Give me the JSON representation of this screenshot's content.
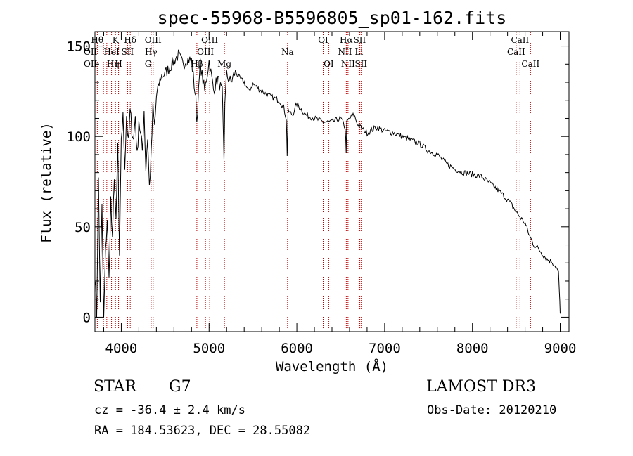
{
  "chart_data": {
    "type": "line",
    "title": "spec-55968-B5596805_sp01-162.fits",
    "xlabel": "Wavelength (Å)",
    "ylabel": "Flux (relative)",
    "xlim": [
      3700,
      9100
    ],
    "ylim": [
      -8,
      158
    ],
    "xticks": [
      4000,
      5000,
      6000,
      7000,
      8000,
      9000
    ],
    "yticks": [
      0,
      50,
      100,
      150
    ],
    "series": [
      {
        "name": "spectrum",
        "x": [
          3700,
          3720,
          3740,
          3760,
          3780,
          3800,
          3820,
          3840,
          3860,
          3880,
          3900,
          3920,
          3940,
          3960,
          3980,
          4000,
          4020,
          4040,
          4060,
          4080,
          4100,
          4120,
          4140,
          4160,
          4180,
          4200,
          4220,
          4240,
          4260,
          4280,
          4300,
          4320,
          4340,
          4360,
          4380,
          4400,
          4450,
          4500,
          4550,
          4600,
          4650,
          4700,
          4750,
          4800,
          4850,
          4860,
          4900,
          4950,
          5000,
          5050,
          5100,
          5150,
          5170,
          5180,
          5200,
          5250,
          5300,
          5350,
          5400,
          5450,
          5500,
          5600,
          5700,
          5800,
          5850,
          5880,
          5890,
          5900,
          5950,
          6000,
          6100,
          6200,
          6300,
          6400,
          6500,
          6550,
          6562,
          6570,
          6600,
          6650,
          6700,
          6750,
          6800,
          6900,
          7000,
          7100,
          7200,
          7300,
          7400,
          7500,
          7600,
          7700,
          7800,
          7900,
          8000,
          8100,
          8200,
          8300,
          8400,
          8450,
          8500,
          8550,
          8600,
          8650,
          8700,
          8750,
          8800,
          8850,
          8900,
          8950,
          8980,
          8990,
          9000
        ],
        "values": [
          25,
          2,
          75,
          10,
          60,
          -2,
          35,
          55,
          20,
          65,
          40,
          80,
          50,
          95,
          30,
          100,
          110,
          85,
          112,
          95,
          113,
          105,
          98,
          112,
          88,
          110,
          100,
          92,
          115,
          82,
          100,
          72,
          88,
          115,
          105,
          122,
          133,
          135,
          138,
          142,
          145,
          140,
          143,
          142,
          120,
          108,
          140,
          125,
          142,
          126,
          132,
          124,
          85,
          120,
          134,
          130,
          136,
          132,
          130,
          125,
          129,
          125,
          122,
          120,
          116,
          110,
          90,
          114,
          112,
          118,
          112,
          110,
          108,
          108,
          110,
          105,
          92,
          108,
          110,
          112,
          106,
          104,
          102,
          105,
          103,
          102,
          100,
          98,
          96,
          92,
          90,
          85,
          82,
          80,
          79,
          78,
          74,
          70,
          65,
          62,
          58,
          55,
          52,
          45,
          40,
          38,
          35,
          32,
          31,
          28,
          25,
          14,
          2
        ]
      }
    ],
    "lines": [
      {
        "label": "Hθ",
        "wl": 3797,
        "row": 0,
        "ha": "right"
      },
      {
        "label": "OII",
        "wl": 3727,
        "row": 1,
        "ha": "right"
      },
      {
        "label": "OII",
        "wl": 3727,
        "row": 2,
        "ha": "right"
      },
      {
        "label": "Hη",
        "wl": 3835,
        "row": 2,
        "ha": "left"
      },
      {
        "label": "HeI",
        "wl": 3889,
        "row": 1,
        "ha": "center"
      },
      {
        "label": "SII",
        "wl": 4072,
        "row": 1,
        "ha": "center"
      },
      {
        "label": "K",
        "wl": 3934,
        "row": 0,
        "ha": "center"
      },
      {
        "label": "H",
        "wl": 3969,
        "row": 2,
        "ha": "center"
      },
      {
        "label": "Hδ",
        "wl": 4102,
        "row": 0,
        "ha": "center"
      },
      {
        "label": "OIII",
        "wl": 4363,
        "row": 0,
        "ha": "center"
      },
      {
        "label": "Hγ",
        "wl": 4340,
        "row": 1,
        "ha": "center"
      },
      {
        "label": "G",
        "wl": 4305,
        "row": 2,
        "ha": "center"
      },
      {
        "label": "OIII",
        "wl": 5007,
        "row": 0,
        "ha": "center"
      },
      {
        "label": "OIII",
        "wl": 4959,
        "row": 1,
        "ha": "center"
      },
      {
        "label": "Hβ",
        "wl": 4861,
        "row": 2,
        "ha": "center"
      },
      {
        "label": "Mg",
        "wl": 5175,
        "row": 2,
        "ha": "center"
      },
      {
        "label": "Na",
        "wl": 5894,
        "row": 1,
        "ha": "center"
      },
      {
        "label": "OI",
        "wl": 6300,
        "row": 0,
        "ha": "center"
      },
      {
        "label": "OI",
        "wl": 6363,
        "row": 2,
        "ha": "center"
      },
      {
        "label": "Hα",
        "wl": 6563,
        "row": 0,
        "ha": "center"
      },
      {
        "label": "SII",
        "wl": 6716,
        "row": 0,
        "ha": "center"
      },
      {
        "label": "NII",
        "wl": 6548,
        "row": 1,
        "ha": "center"
      },
      {
        "label": "Li",
        "wl": 6708,
        "row": 1,
        "ha": "center"
      },
      {
        "label": "NII",
        "wl": 6583,
        "row": 2,
        "ha": "center"
      },
      {
        "label": "SII",
        "wl": 6731,
        "row": 2,
        "ha": "center"
      },
      {
        "label": "CaII",
        "wl": 8542,
        "row": 0,
        "ha": "center"
      },
      {
        "label": "CaII",
        "wl": 8498,
        "row": 1,
        "ha": "center"
      },
      {
        "label": "CaII",
        "wl": 8662,
        "row": 2,
        "ha": "center"
      }
    ],
    "colors": {
      "spectrum": "#000000",
      "line_marker": "#b30000"
    }
  },
  "info": {
    "class": "STAR",
    "subclass": "G7",
    "survey": "LAMOST DR3",
    "cz": "cz = -36.4 ± 2.4 km/s",
    "obs_date": "Obs-Date: 20120210",
    "coords": "RA = 184.53623, DEC =  28.55082"
  }
}
